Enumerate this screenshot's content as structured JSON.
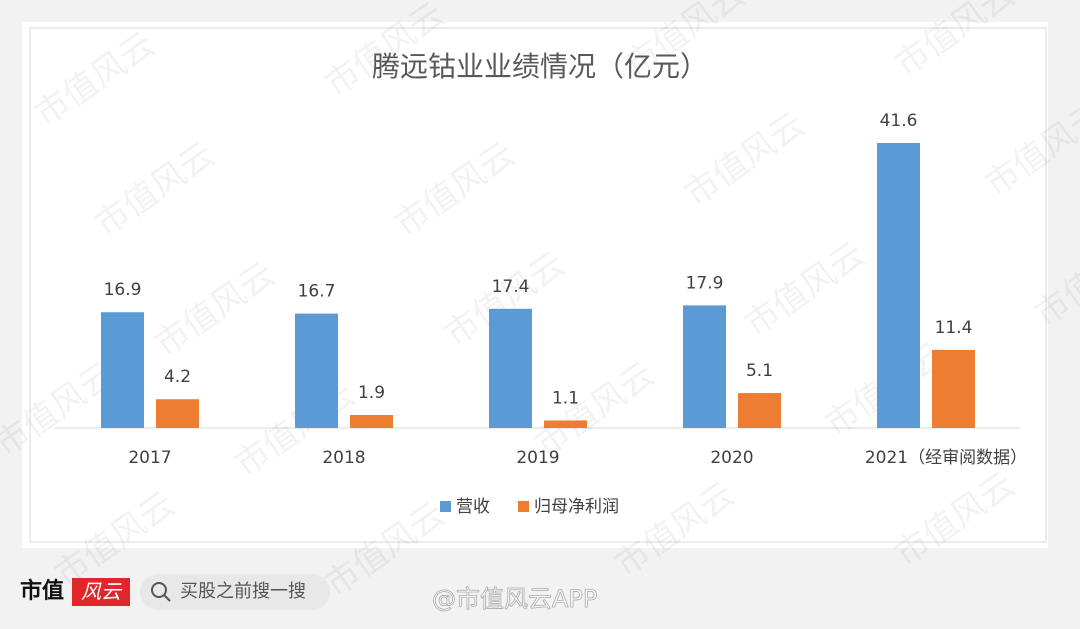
{
  "chart_data": {
    "type": "bar",
    "title": "腾远钴业业绩情况（亿元）",
    "categories": [
      "2017",
      "2018",
      "2019",
      "2020",
      "2021（经审阅数据）"
    ],
    "series": [
      {
        "name": "营收",
        "color": "#5b9bd5",
        "values": [
          16.9,
          16.7,
          17.4,
          17.9,
          41.6
        ]
      },
      {
        "name": "归母净利润",
        "color": "#ed7d31",
        "values": [
          4.2,
          1.9,
          1.1,
          5.1,
          11.4
        ]
      }
    ]
  },
  "footer": {
    "logo_left": "市值",
    "logo_right": "风云",
    "search": "买股之前搜一搜",
    "weibo": "@市值风云APP"
  },
  "watermark": "市值风云"
}
